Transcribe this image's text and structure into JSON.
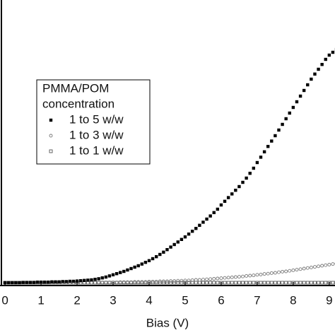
{
  "chart_data": {
    "type": "scatter",
    "x_label": "Bias (V)",
    "legend_title": [
      "PMMA/POM",
      "concentration"
    ],
    "x": [
      0,
      0.1,
      0.2,
      0.3,
      0.4,
      0.5,
      0.6,
      0.7,
      0.8,
      0.9,
      1,
      1.1,
      1.2,
      1.3,
      1.4,
      1.5,
      1.6,
      1.7,
      1.8,
      1.9,
      2,
      2.1,
      2.2,
      2.3,
      2.4,
      2.5,
      2.6,
      2.7,
      2.8,
      2.9,
      3,
      3.1,
      3.2,
      3.3,
      3.4,
      3.5,
      3.6,
      3.7,
      3.8,
      3.9,
      4,
      4.1,
      4.2,
      4.3,
      4.4,
      4.5,
      4.6,
      4.7,
      4.8,
      4.9,
      5,
      5.1,
      5.2,
      5.3,
      5.4,
      5.5,
      5.6,
      5.7,
      5.8,
      5.9,
      6,
      6.1,
      6.2,
      6.3,
      6.4,
      6.5,
      6.6,
      6.7,
      6.8,
      6.9,
      7,
      7.1,
      7.2,
      7.3,
      7.4,
      7.5,
      7.6,
      7.7,
      7.8,
      7.9,
      8,
      8.1,
      8.2,
      8.3,
      8.4,
      8.5,
      8.6,
      8.7,
      8.8,
      8.9,
      9,
      9.1,
      9.2
    ],
    "series": [
      {
        "name": "1 to 5 w/w",
        "color": "#000000",
        "marker": "filled-square",
        "values": [
          0,
          0,
          0,
          0,
          0,
          0.1,
          0.1,
          0.1,
          0.1,
          0.2,
          0.2,
          0.2,
          0.2,
          0.3,
          0.3,
          0.3,
          0.4,
          0.4,
          0.5,
          0.5,
          0.6,
          0.7,
          0.8,
          0.9,
          1.0,
          1.2,
          1.4,
          1.7,
          2.0,
          2.4,
          2.8,
          3.2,
          3.6,
          4.0,
          4.5,
          5.0,
          5.5,
          6.0,
          6.6,
          7.2,
          7.8,
          8.5,
          9.2,
          10,
          10.8,
          11.7,
          12.6,
          13.5,
          14.4,
          15.3,
          16.2,
          17.2,
          18.2,
          19.2,
          20.3,
          21.4,
          22.5,
          23.6,
          24.8,
          26,
          27.5,
          28.8,
          30.1,
          31.4,
          32.7,
          34,
          35.5,
          37,
          38.7,
          40.5,
          42.5,
          44.4,
          46.3,
          48.2,
          50.1,
          52,
          54,
          56,
          58,
          60,
          62,
          64,
          66,
          68,
          70,
          72,
          73.8,
          75.5,
          77.2,
          79,
          80.5,
          81.5,
          82.5
        ]
      },
      {
        "name": "1 to 3 w/w",
        "color": "#777777",
        "marker": "open-circle",
        "values": [
          0,
          0,
          0,
          0,
          0,
          0,
          0,
          0,
          0,
          0,
          0,
          0,
          0,
          0,
          0,
          0,
          0,
          0,
          0,
          0,
          0,
          0,
          0,
          0,
          0,
          0,
          0.1,
          0.1,
          0.1,
          0.1,
          0.1,
          0.1,
          0.2,
          0.2,
          0.2,
          0.2,
          0.3,
          0.3,
          0.3,
          0.3,
          0.4,
          0.4,
          0.4,
          0.5,
          0.5,
          0.5,
          0.6,
          0.6,
          0.7,
          0.7,
          0.8,
          0.8,
          0.9,
          1.0,
          1.0,
          1.1,
          1.2,
          1.3,
          1.4,
          1.5,
          1.6,
          1.7,
          1.8,
          1.9,
          2.0,
          2.1,
          2.2,
          2.4,
          2.5,
          2.6,
          2.8,
          2.9,
          3.1,
          3.2,
          3.4,
          3.5,
          3.7,
          3.9,
          4.0,
          4.2,
          4.4,
          4.6,
          4.8,
          5.0,
          5.2,
          5.4,
          5.6,
          5.8,
          6.0,
          6.2,
          6.4,
          6.6,
          6.8
        ]
      },
      {
        "name": "1 to 1 w/w",
        "color": "#555555",
        "marker": "open-square",
        "values": [
          0,
          0,
          0,
          0,
          0,
          0,
          0,
          0,
          0,
          0,
          0,
          0,
          0,
          0,
          0,
          0,
          0,
          0,
          0,
          0,
          0,
          0,
          0,
          0,
          0,
          0,
          0,
          0,
          0,
          0,
          0,
          0,
          0,
          0,
          0,
          0,
          0,
          0,
          0,
          0,
          0,
          0,
          0,
          0,
          0,
          0,
          0,
          0,
          0,
          0,
          0,
          0,
          0,
          0,
          0,
          0,
          0,
          0,
          0,
          0,
          0,
          0,
          0,
          0,
          0,
          0,
          0,
          0,
          0,
          0,
          0,
          0,
          0,
          0,
          0,
          0,
          0,
          0,
          0,
          0,
          0,
          0,
          0,
          0,
          0,
          0,
          0,
          0,
          0,
          0,
          0,
          0,
          0
        ]
      }
    ],
    "xlim": [
      -0.14,
      9.16
    ],
    "ylim": [
      -1,
      100
    ],
    "xticks": [
      0,
      1,
      2,
      3,
      4,
      5,
      6,
      7,
      8,
      9
    ]
  }
}
